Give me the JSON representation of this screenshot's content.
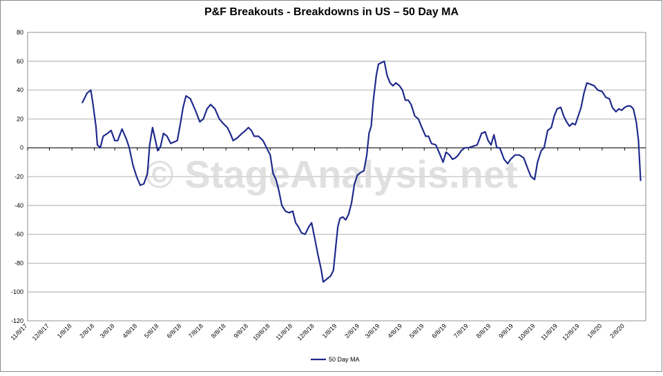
{
  "chart_data": {
    "type": "line",
    "title": "P&F Breakouts - Breakdowns in US – 50 Day MA",
    "watermark": "© StageAnalysis.net",
    "grid": true,
    "legend": "bottom",
    "ylim": [
      -120,
      80
    ],
    "yticks": [
      -120,
      -100,
      -80,
      -60,
      -40,
      -20,
      0,
      20,
      40,
      60,
      80
    ],
    "xlim": [
      "11/8/17",
      "3/8/20"
    ],
    "xticks": [
      "11/8/17",
      "12/8/17",
      "1/8/18",
      "2/8/18",
      "3/8/18",
      "4/8/18",
      "5/8/18",
      "6/8/18",
      "7/8/18",
      "8/8/18",
      "9/8/18",
      "10/8/18",
      "11/8/18",
      "12/8/18",
      "1/8/19",
      "2/8/19",
      "3/8/19",
      "4/8/19",
      "5/8/19",
      "6/8/19",
      "7/8/19",
      "8/8/19",
      "9/8/19",
      "10/8/19",
      "11/8/19",
      "12/8/19",
      "1/8/20",
      "2/8/20"
    ],
    "x": [
      "1/22/18",
      "1/29/18",
      "2/3/18",
      "2/6/18",
      "2/10/18",
      "2/12/18",
      "2/16/18",
      "2/20/18",
      "2/26/18",
      "3/3/18",
      "3/8/18",
      "3/12/18",
      "3/18/18",
      "3/24/18",
      "3/28/18",
      "4/2/18",
      "4/7/18",
      "4/12/18",
      "4/17/18",
      "4/22/18",
      "4/25/18",
      "4/29/18",
      "5/3/18",
      "5/6/18",
      "5/10/18",
      "5/14/18",
      "5/19/18",
      "5/24/18",
      "6/2/18",
      "6/6/18",
      "6/10/18",
      "6/14/18",
      "6/20/18",
      "6/27/18",
      "7/3/18",
      "7/8/18",
      "7/13/18",
      "7/18/18",
      "7/24/18",
      "7/30/18",
      "8/4/18",
      "8/10/18",
      "8/14/18",
      "8/18/18",
      "8/24/18",
      "8/30/18",
      "9/4/18",
      "9/8/18",
      "9/12/18",
      "9/16/18",
      "9/22/18",
      "9/28/18",
      "10/3/18",
      "10/8/18",
      "10/12/18",
      "10/16/18",
      "10/20/18",
      "10/24/18",
      "10/29/18",
      "11/3/18",
      "11/8/18",
      "11/12/18",
      "11/16/18",
      "11/20/18",
      "11/25/18",
      "11/30/18",
      "12/4/18",
      "12/8/18",
      "12/13/18",
      "12/17/18",
      "12/20/18",
      "12/25/18",
      "12/30/18",
      "1/3/19",
      "1/6/19",
      "1/9/19",
      "1/12/19",
      "1/16/19",
      "1/20/19",
      "1/24/19",
      "1/28/19",
      "2/1/19",
      "2/5/19",
      "2/10/19",
      "2/14/19",
      "2/18/19",
      "2/21/19",
      "2/24/19",
      "2/27/19",
      "3/3/19",
      "3/6/19",
      "3/10/19",
      "3/14/19",
      "3/18/19",
      "3/22/19",
      "3/26/19",
      "3/30/19",
      "4/4/19",
      "4/8/19",
      "4/12/19",
      "4/16/19",
      "4/20/19",
      "4/25/19",
      "4/30/19",
      "5/4/19",
      "5/10/19",
      "5/14/19",
      "5/18/19",
      "5/24/19",
      "5/30/19",
      "6/3/19",
      "6/7/19",
      "6/12/19",
      "6/16/19",
      "6/20/19",
      "6/24/19",
      "6/28/19",
      "7/3/19",
      "7/8/19",
      "7/14/19",
      "7/20/19",
      "7/26/19",
      "7/31/19",
      "8/4/19",
      "8/8/19",
      "8/12/19",
      "8/16/19",
      "8/20/19",
      "8/26/19",
      "8/31/19",
      "9/4/19",
      "9/10/19",
      "9/16/19",
      "9/22/19",
      "9/28/19",
      "10/2/19",
      "10/7/19",
      "10/11/19",
      "10/16/19",
      "10/20/19",
      "10/25/19",
      "10/30/19",
      "11/3/19",
      "11/7/19",
      "11/12/19",
      "11/16/19",
      "11/20/19",
      "11/24/19",
      "11/28/19",
      "12/2/19",
      "12/6/19",
      "12/10/19",
      "12/14/19",
      "12/18/19",
      "12/23/19",
      "12/28/19",
      "1/2/20",
      "1/8/20",
      "1/13/20",
      "1/18/20",
      "1/22/20",
      "1/27/20",
      "1/31/20",
      "2/4/20",
      "2/8/20",
      "2/12/20",
      "2/16/20",
      "2/20/20",
      "2/24/20",
      "2/27/20",
      "3/1/20"
    ],
    "series": [
      {
        "name": "50 Day MA",
        "color": "#1f2a8c",
        "values": [
          31,
          38,
          40,
          30,
          15,
          2,
          0,
          8,
          10,
          12,
          5,
          5,
          13,
          6,
          0,
          -12,
          -20,
          -26,
          -25,
          -18,
          2,
          14,
          5,
          -2,
          1,
          10,
          8,
          3,
          5,
          16,
          28,
          36,
          34,
          26,
          18,
          20,
          27,
          30,
          27,
          20,
          17,
          14,
          10,
          5,
          7,
          10,
          12,
          14,
          12,
          8,
          8,
          5,
          0,
          -5,
          -18,
          -22,
          -30,
          -40,
          -44,
          -45,
          -44,
          -52,
          -55,
          -59,
          -60,
          -55,
          -52,
          -62,
          -75,
          -84,
          -93,
          -91,
          -89,
          -85,
          -70,
          -55,
          -49,
          -48,
          -50,
          -46,
          -38,
          -25,
          -19,
          -17,
          -16,
          -5,
          10,
          15,
          33,
          50,
          58,
          59,
          60,
          50,
          45,
          43,
          45,
          43,
          40,
          33,
          33,
          30,
          22,
          20,
          15,
          8,
          8,
          3,
          2,
          -5,
          -10,
          -3,
          -5,
          -8,
          -7,
          -5,
          -2,
          0,
          0,
          1,
          2,
          10,
          11,
          5,
          2,
          9,
          0,
          0,
          -8,
          -11,
          -8,
          -5,
          -5,
          -7,
          -15,
          -20,
          -22,
          -10,
          -2,
          0,
          12,
          14,
          22,
          27,
          28,
          22,
          18,
          15,
          17,
          16,
          22,
          28,
          38,
          45,
          44,
          43,
          40,
          39,
          35,
          34,
          28,
          25,
          27,
          26,
          28,
          29,
          29,
          27,
          18,
          5,
          -23
        ]
      }
    ]
  }
}
